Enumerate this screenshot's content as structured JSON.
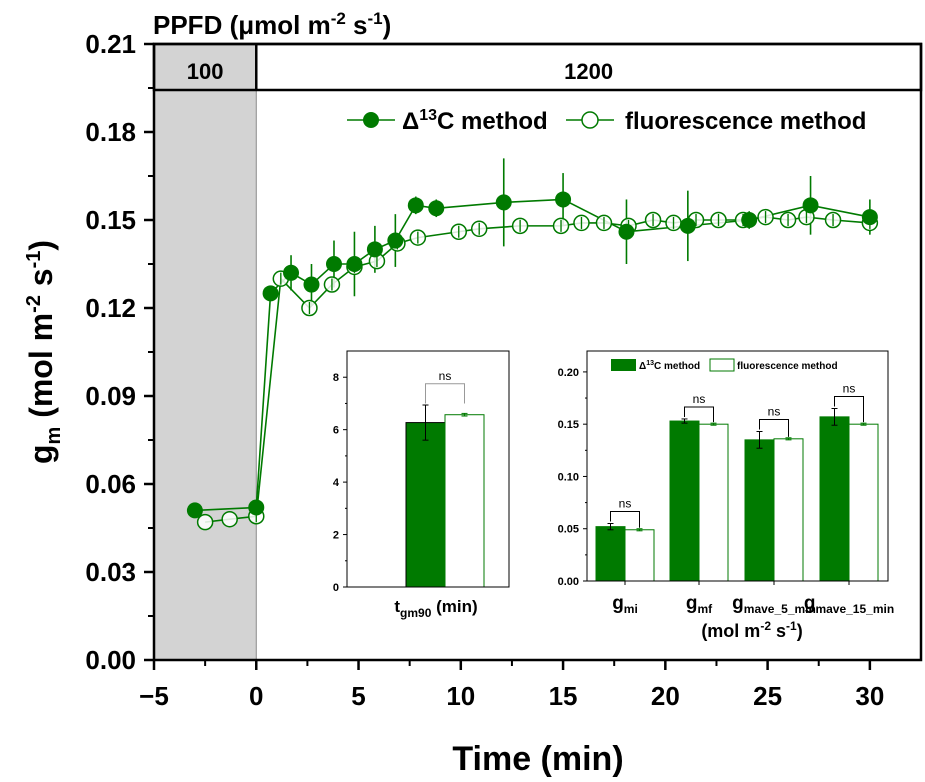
{
  "colors": {
    "series": "#007a00",
    "dark_fill": "#007a00",
    "shade": "#d3d3d3",
    "axis": "#000000",
    "bracket": "#999999"
  },
  "chart_data": [
    {
      "id": "main",
      "type": "line",
      "title": "",
      "header_label": "PPFD (μmol m⁻² s⁻¹)",
      "header_label_parts": {
        "base": "PPFD (μmol m",
        "sup1": "-2",
        "mid": " s",
        "sup2": "-1",
        "end": ")"
      },
      "ppfd_segments": [
        {
          "label": "100",
          "x_range": [
            -5,
            0
          ],
          "shaded": true
        },
        {
          "label": "1200",
          "x_range": [
            0,
            32.5
          ],
          "shaded": false
        }
      ],
      "xlabel": "Time (min)",
      "ylabel": "gm (mol m-2 s-1)",
      "ylabel_parts": {
        "g": "g",
        "sub": "m",
        "a": " (mol m",
        "sup1": "-2",
        "b": " s",
        "sup2": "-1",
        "c": ")"
      },
      "xlim": [
        -5,
        32.5
      ],
      "ylim": [
        0,
        0.21
      ],
      "x_ticks": [
        -5,
        0,
        5,
        10,
        15,
        20,
        25,
        30
      ],
      "x_tick_labels": [
        "−5",
        "0",
        "5",
        "10",
        "15",
        "20",
        "25",
        "30"
      ],
      "y_ticks": [
        0.0,
        0.03,
        0.06,
        0.09,
        0.12,
        0.15,
        0.18,
        0.21
      ],
      "y_tick_labels": [
        "0.00",
        "0.03",
        "0.06",
        "0.09",
        "0.12",
        "0.15",
        "0.18",
        "0.21"
      ],
      "grid": false,
      "legend_position": "top-right",
      "series": [
        {
          "name": "Δ13C method",
          "legend_parts": {
            "delta": "Δ",
            "sup": "13",
            "rest": "C method"
          },
          "marker": "filled-circle",
          "x": [
            -3.0,
            0.0,
            0.7,
            1.7,
            2.7,
            3.8,
            4.8,
            5.8,
            6.8,
            7.8,
            8.8,
            12.1,
            15.0,
            18.1,
            21.1,
            24.1,
            27.1,
            30.0
          ],
          "y": [
            0.051,
            0.052,
            0.125,
            0.132,
            0.128,
            0.135,
            0.135,
            0.14,
            0.143,
            0.155,
            0.154,
            0.156,
            0.157,
            0.146,
            0.148,
            0.15,
            0.155,
            0.151
          ],
          "err": [
            0.0,
            0.0,
            0.0,
            0.006,
            0.007,
            0.008,
            0.011,
            0.008,
            0.009,
            0.003,
            0.003,
            0.015,
            0.009,
            0.011,
            0.012,
            0.003,
            0.01,
            0.006
          ]
        },
        {
          "name": "fluorescence method",
          "legend_parts": {
            "rest": "fluorescence method"
          },
          "marker": "open-circle",
          "x": [
            -2.5,
            -1.3,
            0.0,
            1.2,
            2.6,
            3.7,
            4.8,
            5.9,
            6.9,
            7.9,
            9.9,
            10.9,
            12.9,
            14.9,
            15.9,
            17.0,
            18.2,
            19.4,
            20.4,
            21.5,
            22.6,
            23.8,
            24.9,
            26.0,
            26.9,
            28.2,
            30.0
          ],
          "y": [
            0.047,
            0.048,
            0.049,
            0.13,
            0.12,
            0.128,
            0.134,
            0.136,
            0.142,
            0.144,
            0.146,
            0.147,
            0.148,
            0.148,
            0.149,
            0.149,
            0.148,
            0.15,
            0.149,
            0.15,
            0.15,
            0.15,
            0.151,
            0.15,
            0.151,
            0.15,
            0.149
          ],
          "err": [
            0.0,
            0.0,
            0.0015,
            0.002,
            0.002,
            0.002,
            0.002,
            0.002,
            0.002,
            0.002,
            0.002,
            0.002,
            0.002,
            0.002,
            0.002,
            0.002,
            0.002,
            0.002,
            0.002,
            0.002,
            0.002,
            0.002,
            0.002,
            0.002,
            0.002,
            0.002,
            0.003
          ]
        }
      ]
    },
    {
      "id": "inset1",
      "type": "bar",
      "categories": [
        "tgm90"
      ],
      "xlabel": "tgm90 (min)",
      "xlabel_parts": {
        "t": "t",
        "sub": "gm90",
        "rest": " (min)"
      },
      "ylim": [
        0,
        9
      ],
      "y_ticks": [
        0,
        2,
        4,
        6,
        8
      ],
      "y_tick_labels": [
        "0",
        "2",
        "4",
        "6",
        "8"
      ],
      "series": [
        {
          "name": "Δ13C method",
          "values": [
            6.27
          ],
          "err": [
            0.67
          ]
        },
        {
          "name": "fluorescence method",
          "values": [
            6.57
          ],
          "err": [
            0.05
          ]
        }
      ],
      "annotations": [
        "ns"
      ]
    },
    {
      "id": "inset2",
      "type": "bar",
      "categories": [
        "gmi",
        "gmf",
        "gmave_5_min",
        "gmave_15_min"
      ],
      "category_parts": [
        {
          "g": "g",
          "sub": "mi"
        },
        {
          "g": "g",
          "sub": "mf"
        },
        {
          "g": "g",
          "sub": "mave_5_min"
        },
        {
          "g": "g",
          "sub": "mave_15_min"
        }
      ],
      "xlabel": "(mol m-2 s-1)",
      "xlabel_parts": {
        "a": "(mol m",
        "sup1": "-2",
        "b": " s",
        "sup2": "-1",
        "c": ")"
      },
      "ylim": [
        0,
        0.22
      ],
      "y_ticks": [
        0.0,
        0.05,
        0.1,
        0.15,
        0.2
      ],
      "y_tick_labels": [
        "0.00",
        "0.05",
        "0.10",
        "0.15",
        "0.20"
      ],
      "legend_position": "top",
      "series": [
        {
          "name": "Δ13C method",
          "legend_parts": {
            "delta": "Δ",
            "sup": "13",
            "rest": "C method"
          },
          "values": [
            0.052,
            0.153,
            0.135,
            0.157
          ],
          "err": [
            0.003,
            0.002,
            0.008,
            0.008
          ]
        },
        {
          "name": "fluorescence method",
          "legend_parts": {
            "rest": "fluorescence method"
          },
          "values": [
            0.049,
            0.15,
            0.136,
            0.15
          ],
          "err": [
            0.001,
            0.001,
            0.001,
            0.001
          ]
        }
      ],
      "annotations": [
        "ns",
        "ns",
        "ns",
        "ns"
      ]
    }
  ]
}
